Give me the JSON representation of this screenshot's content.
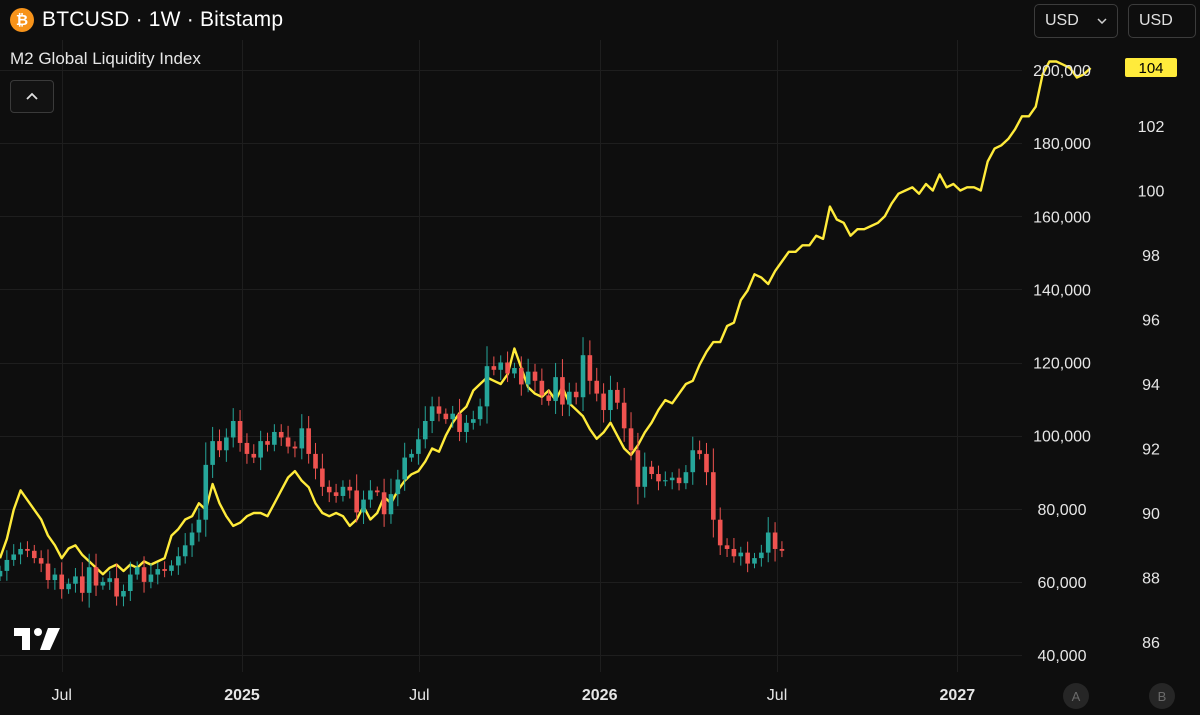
{
  "header": {
    "symbol_icon": "bitcoin-icon",
    "symbol_glyph": "₿",
    "title": "BTCUSD · 1W · Bitstamp",
    "subtitle": "M2 Global Liquidity Index"
  },
  "toolbar": {
    "collapse_icon": "chevron-up-icon",
    "left_unit": "USD",
    "right_unit": "USD",
    "dropdown_icon": "chevron-down-icon"
  },
  "footer": {
    "logo_icon": "tradingview-logo-icon",
    "scale_a": "A",
    "scale_b": "B"
  },
  "colors": {
    "background": "#0e0e0e",
    "grid": "#1e1e1e",
    "up": "#26a69a",
    "down": "#ef5350",
    "m2_line": "#ffeb3b",
    "axis_text": "#e6e6e6"
  },
  "chart_data": {
    "type": "candlestick+line",
    "x_axis": {
      "labels": [
        "Jul",
        "2025",
        "Jul",
        "2026",
        "Jul",
        "2027"
      ],
      "label_dates": [
        "2024-07-01",
        "2025-01-01",
        "2025-07-01",
        "2026-01-01",
        "2026-07-01",
        "2027-01-01"
      ],
      "bold": [
        false,
        true,
        false,
        true,
        false,
        true
      ],
      "range": [
        "2024-04-29",
        "2027-03-08"
      ]
    },
    "y_axis_left": {
      "label": "",
      "ticks": [
        40000,
        60000,
        80000,
        100000,
        120000,
        140000,
        160000,
        180000,
        200000
      ],
      "tick_labels": [
        "40,000",
        "60,000",
        "80,000",
        "100,000",
        "120,000",
        "140,000",
        "160,000",
        "180,000",
        "200,000"
      ],
      "range": [
        40000,
        200000
      ]
    },
    "y_axis_right": {
      "label": "",
      "ticks": [
        86,
        88,
        90,
        92,
        94,
        96,
        98,
        100,
        102
      ],
      "range": [
        86,
        104
      ],
      "last_value_label": "104"
    },
    "series": [
      {
        "type": "candlestick",
        "start_date": "2024-04-29",
        "interval": "1W",
        "closes": [
          63000,
          66000,
          67500,
          69000,
          68500,
          66500,
          65000,
          60500,
          62000,
          58000,
          59500,
          61500,
          57000,
          64000,
          59000,
          60000,
          61000,
          56000,
          57500,
          62000,
          64000,
          60000,
          62000,
          63500,
          63000,
          64500,
          67000,
          70000,
          73500,
          77000,
          92000,
          98500,
          96000,
          99500,
          104000,
          98000,
          95000,
          94000,
          98500,
          97500,
          101000,
          99500,
          97000,
          96500,
          102000,
          95000,
          91000,
          86000,
          84500,
          83500,
          86000,
          85000,
          79000,
          82500,
          85000,
          84500,
          78500,
          84000,
          88000,
          94000,
          95000,
          99000,
          104000,
          108000,
          106000,
          104500,
          106000,
          101000,
          103500,
          104500,
          108000,
          119000,
          118000,
          120000,
          117000,
          118500,
          114000,
          117500,
          115000,
          111000,
          109500,
          116000,
          108500,
          112000,
          110500,
          122000,
          115000,
          111500,
          107000,
          112500,
          109000,
          102000,
          96000,
          86000,
          91500,
          89500,
          87500,
          87800,
          88500,
          87000,
          90000,
          96000,
          95000,
          90000,
          77000,
          70000,
          69000,
          67000,
          68000,
          65000,
          66500,
          68000,
          73500,
          69000,
          68500
        ]
      },
      {
        "type": "line",
        "name": "",
        "start_date": "2024-04-29",
        "interval": "1W",
        "values": [
          88.6,
          89.2,
          90.1,
          90.7,
          90.4,
          90.1,
          89.8,
          89.3,
          89.0,
          88.6,
          88.9,
          89.0,
          88.7,
          88.5,
          88.3,
          88.1,
          88.3,
          88.4,
          88.2,
          88.4,
          88.3,
          88.5,
          88.4,
          88.5,
          88.6,
          89.3,
          89.5,
          89.8,
          89.9,
          90.3,
          90.1,
          90.9,
          90.3,
          89.9,
          89.6,
          89.7,
          89.9,
          90.0,
          90.0,
          89.9,
          90.3,
          90.7,
          91.1,
          91.3,
          91.0,
          90.8,
          90.3,
          90.0,
          89.9,
          90.0,
          89.9,
          89.6,
          89.8,
          90.2,
          89.8,
          90.0,
          90.5,
          90.3,
          90.7,
          91.0,
          91.2,
          91.3,
          91.6,
          92.0,
          91.9,
          92.4,
          92.8,
          93.1,
          93.3,
          93.8,
          94.0,
          94.2,
          94.1,
          94.0,
          94.3,
          95.1,
          94.5,
          93.9,
          93.7,
          93.6,
          93.8,
          93.5,
          93.9,
          93.4,
          93.2,
          93.0,
          92.6,
          92.3,
          92.5,
          92.8,
          92.4,
          92.0,
          91.8,
          92.1,
          92.5,
          92.8,
          93.2,
          93.5,
          93.4,
          93.7,
          94.0,
          94.1,
          94.6,
          95.0,
          95.3,
          95.3,
          95.8,
          95.9,
          96.6,
          96.9,
          97.4,
          97.3,
          97.1,
          97.5,
          97.8,
          98.1,
          98.1,
          98.3,
          98.3,
          98.6,
          98.5,
          99.5,
          99.1,
          99.0,
          98.6,
          98.8,
          98.8,
          98.9,
          99.0,
          99.2,
          99.6,
          99.9,
          100.0,
          100.1,
          99.9,
          100.2,
          100.0,
          100.5,
          100.1,
          100.2,
          100.0,
          100.1,
          100.1,
          100.0,
          100.9,
          101.3,
          101.4,
          101.6,
          101.9,
          102.3,
          102.3,
          102.6,
          103.6,
          104.0,
          104.0,
          103.9,
          103.8,
          103.5,
          103.6,
          103.8
        ]
      }
    ]
  }
}
